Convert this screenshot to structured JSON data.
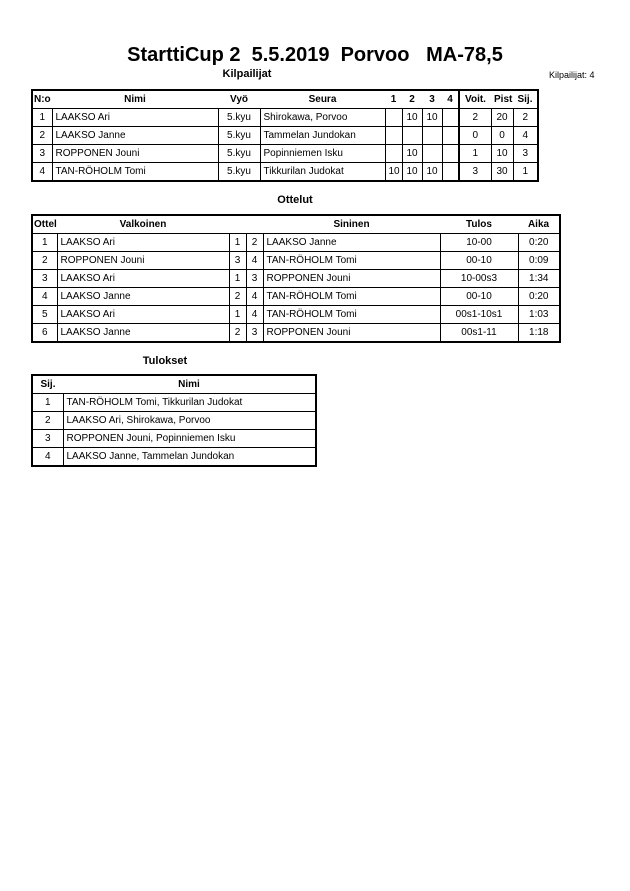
{
  "title": "StarttiCup 2  5.5.2019  Porvoo   MA-78,5",
  "competitors": {
    "heading": "Kilpailijat",
    "count_label": "Kilpailijat: 4",
    "columns": [
      "N:o",
      "Nimi",
      "Vyö",
      "Seura",
      "1",
      "2",
      "3",
      "4",
      "Voit.",
      "Pist.",
      "Sij."
    ],
    "rows": [
      [
        "1",
        "LAAKSO Ari",
        "5.kyu",
        "Shirokawa, Porvoo",
        "",
        "10",
        "10",
        "",
        "2",
        "20",
        "2"
      ],
      [
        "2",
        "LAAKSO Janne",
        "5.kyu",
        "Tammelan Jundokan",
        "",
        "",
        "",
        "",
        "0",
        "0",
        "4"
      ],
      [
        "3",
        "ROPPONEN Jouni",
        "5.kyu",
        "Popinniemen Isku",
        "",
        "10",
        "",
        "",
        "1",
        "10",
        "3"
      ],
      [
        "4",
        "TAN-RÖHOLM Tomi",
        "5.kyu",
        "Tikkurilan Judokat",
        "10",
        "10",
        "10",
        "",
        "3",
        "30",
        "1"
      ]
    ]
  },
  "matches": {
    "heading": "Ottelut",
    "columns": [
      "Ottelu",
      "Valkoinen",
      "",
      "",
      "Sininen",
      "Tulos",
      "Aika"
    ],
    "rows": [
      [
        "1",
        "LAAKSO Ari",
        "1",
        "2",
        "LAAKSO Janne",
        "10-00",
        "0:20"
      ],
      [
        "2",
        "ROPPONEN Jouni",
        "3",
        "4",
        "TAN-RÖHOLM Tomi",
        "00-10",
        "0:09"
      ],
      [
        "3",
        "LAAKSO Ari",
        "1",
        "3",
        "ROPPONEN Jouni",
        "10-00s3",
        "1:34"
      ],
      [
        "4",
        "LAAKSO Janne",
        "2",
        "4",
        "TAN-RÖHOLM Tomi",
        "00-10",
        "0:20"
      ],
      [
        "5",
        "LAAKSO Ari",
        "1",
        "4",
        "TAN-RÖHOLM Tomi",
        "00s1-10s1",
        "1:03"
      ],
      [
        "6",
        "LAAKSO Janne",
        "2",
        "3",
        "ROPPONEN Jouni",
        "00s1-11",
        "1:18"
      ]
    ]
  },
  "results": {
    "heading": "Tulokset",
    "columns": [
      "Sij.",
      "Nimi"
    ],
    "rows": [
      [
        "1",
        "TAN-RÖHOLM Tomi, Tikkurilan Judokat"
      ],
      [
        "2",
        "LAAKSO Ari, Shirokawa, Porvoo"
      ],
      [
        "3",
        "ROPPONEN Jouni, Popinniemen Isku"
      ],
      [
        "4",
        "LAAKSO Janne, Tammelan Jundokan"
      ]
    ]
  }
}
